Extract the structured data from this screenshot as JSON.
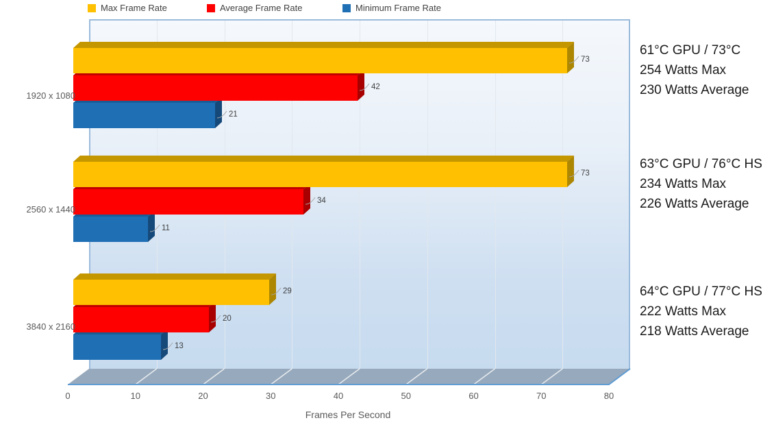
{
  "chart_data": {
    "type": "bar",
    "orientation": "horizontal",
    "style": "3d",
    "title": "",
    "xlabel": "Frames Per Second",
    "ylabel": "",
    "categories": [
      "1920 x 1080",
      "2560 x 1440",
      "3840 x 2160"
    ],
    "series": [
      {
        "name": "Max Frame Rate",
        "color": "#FEC000",
        "top_color": "#C49600",
        "side_color": "#AD8602",
        "values": [
          73,
          73,
          29
        ]
      },
      {
        "name": "Average Frame Rate",
        "color": "#FE0000",
        "top_color": "#C00000",
        "side_color": "#A80000",
        "values": [
          42,
          34,
          20
        ]
      },
      {
        "name": "Minimum Frame Rate",
        "color": "#1F6FB5",
        "top_color": "#1A5C96",
        "side_color": "#15497A",
        "values": [
          21,
          11,
          13
        ]
      }
    ],
    "x_axis": {
      "min": 0,
      "max": 80,
      "step": 10,
      "tick_labels": [
        "0",
        "10",
        "20",
        "30",
        "40",
        "50",
        "60",
        "70",
        "80"
      ]
    },
    "legend_position": "top",
    "grid": true,
    "annotations": [
      {
        "lines": [
          "61°C GPU / 73°C",
          "254 Watts Max",
          "230 Watts Average"
        ]
      },
      {
        "lines": [
          "63°C GPU / 76°C HS",
          "234 Watts Max",
          "226 Watts Average"
        ]
      },
      {
        "lines": [
          "64°C GPU / 77°C HS",
          "222 Watts Max",
          "218 Watts Average"
        ]
      }
    ],
    "colors": {
      "wall_border": "#9BBBDC",
      "floor_fill": "#97A9BC",
      "floor_edge": "#5E9CD3",
      "gridline": "#E2E8EE",
      "label_text": "#595959",
      "value_text": "#404040",
      "annotation_text": "#1a1a1a"
    }
  }
}
